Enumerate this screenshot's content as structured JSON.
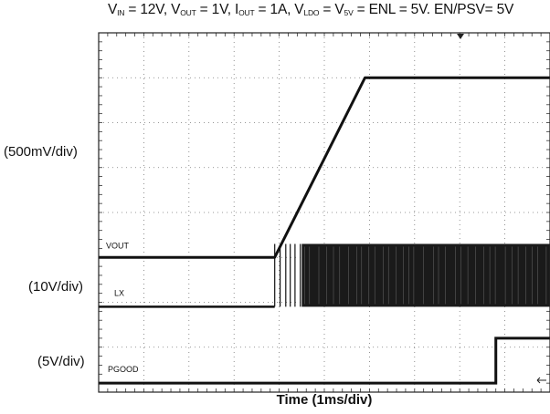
{
  "chart_data": {
    "type": "line",
    "title": "",
    "conditions": {
      "vin_label": "V",
      "vin_sub": "IN",
      "vin_value": " = 12V, ",
      "vout_label": "V",
      "vout_sub": "OUT",
      "vout_value": " = 1V, ",
      "iout_label": "I",
      "iout_sub": "OUT",
      "iout_value": " = 1A, ",
      "vldo_label": "V",
      "vldo_sub": "LDO",
      "vldo_mid": " = ",
      "v5v_label": "V",
      "v5v_sub": "5V",
      "tail": " = ENL = 5V. EN/PSV= 5V"
    },
    "xlabel": "Time (1ms/div)",
    "x_divisions": 10,
    "y_divisions": 8,
    "x_unit": "div",
    "grid": true,
    "scales": [
      "(500mV/div)",
      "(10V/div)",
      "(5V/div)"
    ],
    "series": [
      {
        "name": "VOUT",
        "scale": "(500mV/div)",
        "points": [
          [
            0,
            3.0
          ],
          [
            3.9,
            3.0
          ],
          [
            5.9,
            7.0
          ],
          [
            10,
            7.0
          ]
        ]
      },
      {
        "name": "LX",
        "scale": "(10V/div)",
        "low_level_div": 1.9,
        "high_level_div": 3.3,
        "switching_start_div": 3.9,
        "switching_dense_div": 4.5,
        "switching_end_div": 10
      },
      {
        "name": "PGOOD",
        "scale": "(5V/div)",
        "points": [
          [
            0,
            0.2
          ],
          [
            8.8,
            0.2
          ],
          [
            8.8,
            1.2
          ],
          [
            10,
            1.2
          ]
        ]
      }
    ]
  }
}
